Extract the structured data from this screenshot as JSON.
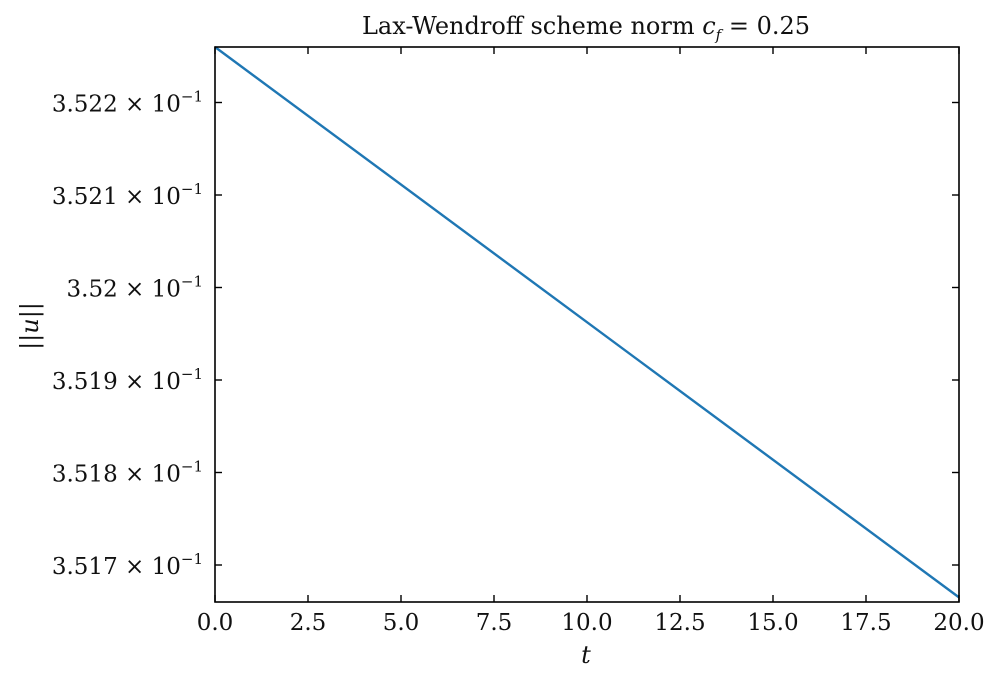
{
  "chart_data": {
    "type": "line",
    "title": {
      "prefix": "Lax-Wendroff scheme norm ",
      "var": "c",
      "var_sub": "f",
      "suffix": " = 0.25"
    },
    "xlabel": "t",
    "ylabel": "||u||",
    "xlim": [
      0.0,
      20.0
    ],
    "ylim": [
      0.35166,
      0.35226
    ],
    "x_ticks": [
      {
        "value": 0.0,
        "label": "0.0"
      },
      {
        "value": 2.5,
        "label": "2.5"
      },
      {
        "value": 5.0,
        "label": "5.0"
      },
      {
        "value": 7.5,
        "label": "7.5"
      },
      {
        "value": 10.0,
        "label": "10.0"
      },
      {
        "value": 12.5,
        "label": "12.5"
      },
      {
        "value": 15.0,
        "label": "15.0"
      },
      {
        "value": 17.5,
        "label": "17.5"
      },
      {
        "value": 20.0,
        "label": "20.0"
      }
    ],
    "y_ticks": [
      {
        "value": 0.3522,
        "mantissa": "3.522",
        "times": "×",
        "base": "10",
        "exponent": "−1"
      },
      {
        "value": 0.3521,
        "mantissa": "3.521",
        "times": "×",
        "base": "10",
        "exponent": "−1"
      },
      {
        "value": 0.352,
        "mantissa": "3.52",
        "times": "×",
        "base": "10",
        "exponent": "−1"
      },
      {
        "value": 0.3519,
        "mantissa": "3.519",
        "times": "×",
        "base": "10",
        "exponent": "−1"
      },
      {
        "value": 0.3518,
        "mantissa": "3.518",
        "times": "×",
        "base": "10",
        "exponent": "−1"
      },
      {
        "value": 0.3517,
        "mantissa": "3.517",
        "times": "×",
        "base": "10",
        "exponent": "−1"
      }
    ],
    "grid": false,
    "ticks_direction": "in",
    "series": [
      {
        "color": "#1f77b4",
        "x": [
          0.0,
          20.0
        ],
        "y": [
          0.35226,
          0.351665
        ]
      }
    ]
  }
}
